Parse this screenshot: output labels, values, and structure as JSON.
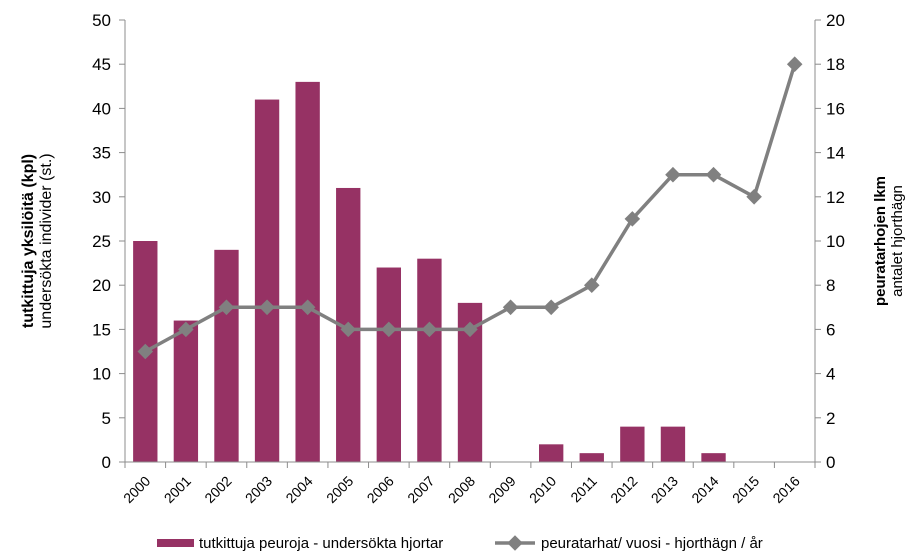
{
  "chart_data": {
    "type": "bar",
    "categories": [
      "2000",
      "2001",
      "2002",
      "2003",
      "2004",
      "2005",
      "2006",
      "2007",
      "2008",
      "2009",
      "2010",
      "2011",
      "2012",
      "2013",
      "2014",
      "2015",
      "2016"
    ],
    "series": [
      {
        "name": "tutkittuja peuroja - undersökta hjortar",
        "type": "bar",
        "axis": "left",
        "color": "#963264",
        "values": [
          25,
          16,
          24,
          41,
          43,
          31,
          22,
          23,
          18,
          null,
          2,
          1,
          4,
          4,
          1,
          null,
          null
        ]
      },
      {
        "name": "peuratarhat/ vuosi - hjorthägn / år",
        "type": "line",
        "axis": "right",
        "color": "#808080",
        "values": [
          5,
          6,
          7,
          7,
          7,
          6,
          6,
          6,
          6,
          7,
          7,
          8,
          11,
          13,
          13,
          12,
          18
        ]
      }
    ],
    "y_left": {
      "label_bold": "tutkittuja yksilöitä (kpl)",
      "label": "undersökta individer (st.)",
      "ylim": [
        0,
        50
      ],
      "ticks": [
        "0",
        "5",
        "10",
        "15",
        "20",
        "25",
        "30",
        "35",
        "40",
        "45",
        "50"
      ]
    },
    "y_right": {
      "label_bold": "peuratarhojen lkm",
      "label": "antalet hjorthägn",
      "ylim": [
        0,
        20
      ],
      "ticks": [
        "0",
        "2",
        "4",
        "6",
        "8",
        "10",
        "12",
        "14",
        "16",
        "18",
        "20"
      ]
    },
    "grid": false,
    "legend": "bottom"
  }
}
